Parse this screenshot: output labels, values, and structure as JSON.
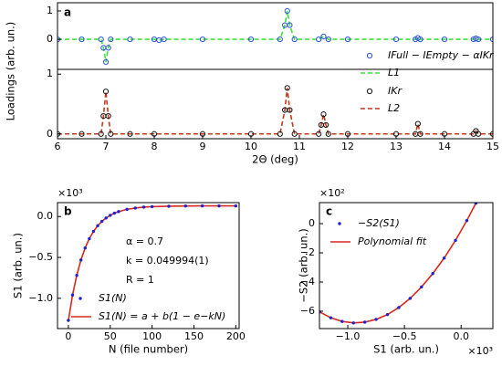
{
  "chart_data": [
    {
      "type": "scatter",
      "label": "a",
      "ylabel": "Loadings (arb. un.)",
      "xlim": [
        6,
        15
      ],
      "ylim": [
        -1.06,
        1.29
      ],
      "yticks": [
        0,
        1
      ],
      "x": [
        6,
        6.5,
        6.9,
        6.95,
        7.0,
        7.05,
        7.1,
        7.5,
        8.0,
        8.1,
        8.2,
        9,
        10,
        10.6,
        10.7,
        10.75,
        10.8,
        10.9,
        11.4,
        11.5,
        11.6,
        12,
        13,
        13.4,
        13.45,
        13.5,
        14,
        14.6,
        14.65,
        14.7,
        15
      ],
      "series": [
        {
          "name": "IFull − IEmpty − αIKr",
          "type": "scatter",
          "color": "#2b50d8",
          "values": [
            0,
            0,
            0,
            -0.3,
            -0.8,
            -0.3,
            0,
            0,
            0,
            -0.03,
            0,
            0,
            0,
            0,
            0.5,
            1.0,
            0.5,
            0,
            0,
            0.1,
            0,
            0,
            0,
            0,
            0.05,
            0,
            0,
            0,
            0.03,
            0,
            0
          ]
        },
        {
          "name": "L1",
          "type": "line",
          "color": "#3ee03e",
          "values": [
            0,
            0,
            0,
            -0.3,
            -0.8,
            -0.3,
            0,
            0,
            0,
            -0.03,
            0,
            0,
            0,
            0,
            0.5,
            1.0,
            0.5,
            0,
            0,
            0.1,
            0,
            0,
            0,
            0,
            0.05,
            0,
            0,
            0,
            0.03,
            0,
            0
          ]
        }
      ]
    },
    {
      "type": "scatter",
      "xlabel": "2Θ (deg)",
      "xlim": [
        6,
        15
      ],
      "xticks": [
        6,
        7,
        8,
        9,
        10,
        11,
        12,
        13,
        14,
        15
      ],
      "ylim": [
        -0.08,
        1.08
      ],
      "yticks": [
        0,
        1
      ],
      "x": [
        6,
        6.5,
        6.9,
        6.95,
        7.0,
        7.05,
        7.1,
        7.5,
        8.0,
        9,
        10,
        10.6,
        10.7,
        10.75,
        10.8,
        10.9,
        11.4,
        11.45,
        11.5,
        11.55,
        11.6,
        12,
        13,
        13.4,
        13.45,
        13.5,
        14,
        14.6,
        14.65,
        14.7,
        15
      ],
      "series": [
        {
          "name": "IKr",
          "type": "scatter",
          "color": "#111111",
          "values": [
            0,
            0,
            0,
            0.3,
            0.71,
            0.3,
            0,
            0,
            0,
            0,
            0,
            0,
            0.4,
            0.77,
            0.4,
            0,
            0,
            0.15,
            0.33,
            0.15,
            0,
            0,
            0,
            0,
            0.17,
            0,
            0,
            0,
            0.05,
            0,
            0
          ]
        },
        {
          "name": "L2",
          "type": "line",
          "color": "#c0391b",
          "values": [
            0,
            0,
            0,
            0.3,
            0.71,
            0.3,
            0,
            0,
            0,
            0,
            0,
            0,
            0.4,
            0.77,
            0.4,
            0,
            0,
            0.15,
            0.33,
            0.15,
            0,
            0,
            0,
            0,
            0.17,
            0,
            0,
            0,
            0.05,
            0,
            0
          ]
        }
      ]
    },
    {
      "type": "scatter",
      "label": "b",
      "xlabel": "N (file number)",
      "ylabel": "S1 (arb. un.)",
      "yexp": "×10³",
      "annotations": [
        "α = 0.7",
        "k = 0.049994(1)",
        "R = 1"
      ],
      "xlim": [
        -13,
        204
      ],
      "xticks": [
        0,
        50,
        100,
        150,
        200
      ],
      "ylim": [
        -1.37,
        0.17
      ],
      "yticks": [
        {
          "value": 0,
          "label": "0.0"
        },
        {
          "value": -0.5,
          "label": "−0.5"
        },
        {
          "value": -1,
          "label": "−1.0"
        }
      ],
      "x": [
        0,
        5,
        10,
        15,
        20,
        25,
        30,
        35,
        40,
        45,
        50,
        55,
        60,
        70,
        80,
        90,
        100,
        120,
        140,
        160,
        180,
        200
      ],
      "series": [
        {
          "name": "S1(N)",
          "type": "scatter",
          "color": "#1f1fd6",
          "values": [
            -1.27,
            -0.96,
            -0.719,
            -0.531,
            -0.385,
            -0.271,
            -0.182,
            -0.113,
            -0.059,
            -0.018,
            0.015,
            0.041,
            0.06,
            0.088,
            0.104,
            0.115,
            0.121,
            0.126,
            0.129,
            0.13,
            0.13,
            0.13
          ]
        },
        {
          "name": "S1(N) = a + b(1 − e−kN)",
          "type": "line",
          "color": "#d62a1e",
          "values": [
            -1.27,
            -0.96,
            -0.719,
            -0.531,
            -0.385,
            -0.271,
            -0.182,
            -0.113,
            -0.059,
            -0.018,
            0.015,
            0.041,
            0.06,
            0.088,
            0.104,
            0.115,
            0.121,
            0.126,
            0.129,
            0.13,
            0.13,
            0.13
          ]
        }
      ]
    },
    {
      "type": "scatter",
      "label": "c",
      "xlabel": "S1 (arb. un.)",
      "ylabel": "−S2 (arb. un.)",
      "yexp": "×10²",
      "xexp": "×10³",
      "xlim": [
        -1.25,
        0.28
      ],
      "xticks": [
        {
          "value": -1,
          "label": "−1.0"
        },
        {
          "value": -0.5,
          "label": "−0.5"
        },
        {
          "value": 0,
          "label": "0.0"
        }
      ],
      "ylim": [
        -7.19,
        1.44
      ],
      "yticks": [
        0,
        {
          "value": -2,
          "label": "−2"
        },
        {
          "value": -4,
          "label": "−4"
        },
        {
          "value": -6,
          "label": "−6"
        }
      ],
      "x": [
        -1.25,
        -1.15,
        -1.05,
        -0.95,
        -0.85,
        -0.75,
        -0.65,
        -0.55,
        -0.45,
        -0.35,
        -0.25,
        -0.15,
        -0.05,
        0.05,
        0.13
      ],
      "series": [
        {
          "name": "−S2(S1)",
          "type": "scatter",
          "color": "#1f1fd6",
          "values": [
            -6.05,
            -6.45,
            -6.7,
            -6.8,
            -6.75,
            -6.56,
            -6.23,
            -5.75,
            -5.12,
            -4.34,
            -3.42,
            -2.36,
            -1.15,
            0.21,
            1.4
          ]
        },
        {
          "name": "Polynomial fit",
          "type": "line",
          "color": "#d62a1e",
          "values": [
            -6.05,
            -6.45,
            -6.7,
            -6.8,
            -6.75,
            -6.56,
            -6.23,
            -5.75,
            -5.12,
            -4.34,
            -3.42,
            -2.36,
            -1.15,
            0.21,
            1.4
          ]
        }
      ]
    }
  ]
}
